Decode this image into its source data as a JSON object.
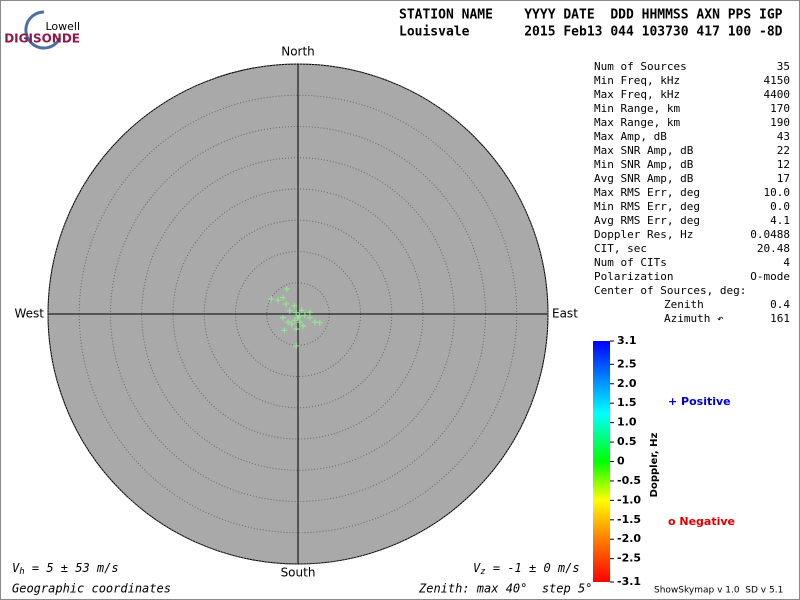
{
  "header": {
    "logo_top": "Lowell",
    "logo_bottom": "DIGISONDE",
    "line1": "STATION NAME    YYYY DATE  DDD HHMMSS AXN PPS IGP",
    "line2": "Louisvale       2015 Feb13 044 103730 417 100 -8D"
  },
  "stats": [
    [
      "Num of Sources",
      35
    ],
    [
      "Min Freq, kHz",
      4150
    ],
    [
      "Max Freq, kHz",
      4400
    ],
    [
      "Min Range, km",
      170
    ],
    [
      "Max Range, km",
      190
    ],
    [
      "Max Amp, dB",
      43
    ],
    [
      "Max SNR Amp, dB",
      22
    ],
    [
      "Min SNR Amp, dB",
      12
    ],
    [
      "Avg SNR Amp, dB",
      17
    ],
    [
      "Max RMS Err, deg",
      "10.0"
    ],
    [
      "Min RMS Err, deg",
      "0.0"
    ],
    [
      "Avg RMS Err, deg",
      4.1
    ],
    [
      "Doppler Res, Hz",
      0.0488
    ],
    [
      "CIT, sec",
      20.48
    ],
    [
      "Num of CITs",
      4
    ],
    [
      "Polarization",
      "O-mode"
    ]
  ],
  "center": {
    "title": "Center of Sources, deg:",
    "rows": [
      [
        "Zenith",
        0.4
      ],
      [
        "Azimuth ↶",
        161
      ]
    ]
  },
  "chart_data": {
    "type": "skymap",
    "directions": {
      "north": "North",
      "south": "South",
      "west": "West",
      "east": "East"
    },
    "rlim": [
      0,
      40
    ],
    "rings": [
      5,
      10,
      15,
      20,
      25,
      30,
      35,
      40
    ],
    "series": [
      {
        "name": "Positive",
        "color": "#90ee90",
        "x": [
          -4.3,
          -3.2,
          -2.4,
          -1.8,
          -1.9,
          -1.3,
          -0.6,
          -0.3,
          0,
          0.3,
          0.6,
          1.1,
          1.9,
          2.7,
          3.5,
          -2.4,
          -1.6,
          -1,
          -0.3,
          0.8,
          -0.3,
          -2.2,
          1.9,
          0.2,
          -0.5
        ],
        "y": [
          2.4,
          2.2,
          2.6,
          4,
          1.6,
          0.5,
          1.3,
          0.2,
          -0.6,
          -1.3,
          0.6,
          -0.2,
          -0.6,
          -1.3,
          -1.4,
          -0.6,
          -1.3,
          -1.6,
          -2.4,
          -1.9,
          -5.1,
          -2.6,
          0.3,
          -0.3,
          -1
        ]
      }
    ],
    "clim": [
      -3.1,
      3.1
    ],
    "cticks": [
      3.1,
      2.5,
      {
        "value": 2,
        "label": "2.0"
      },
      1.5,
      {
        "value": 1,
        "label": "1.0"
      },
      0.5,
      0,
      -0.5,
      {
        "value": -1,
        "label": "-1.0"
      },
      -1.5,
      {
        "value": -2,
        "label": "-2.0"
      },
      -2.5,
      -3.1
    ],
    "clabel": "Doppler, Hz",
    "legend": [
      {
        "label": "+ Positive",
        "color": "#0000cc"
      },
      {
        "label": "o Negative",
        "color": "#dd0000"
      }
    ]
  },
  "footer": {
    "vh_symbol": "V",
    "vh_sub": "h",
    "vh_text": " = 5 ± 53 m/s",
    "vz_symbol": "V",
    "vz_sub": "z",
    "vz_text": " = -1 ± 0 m/s",
    "coords": "Geographic coordinates",
    "zenith": "Zenith: max 40°  step 5°",
    "version": "ShowSkymap v 1.0  SD v 5.1"
  }
}
